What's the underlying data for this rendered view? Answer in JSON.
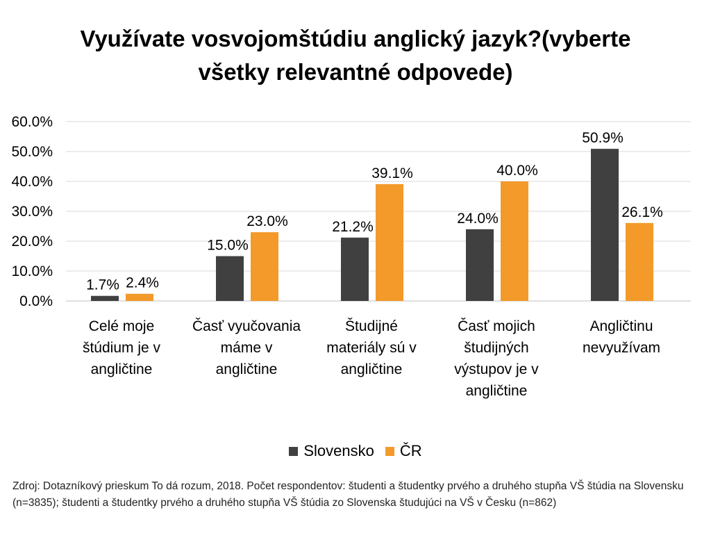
{
  "chart_data": {
    "type": "bar",
    "title_lines": [
      "Využívate vosvojomštúdiu anglický jazyk?(vyberte",
      "všetky relevantné odpovede)"
    ],
    "categories": [
      [
        "Celé moje",
        "štúdium je v",
        "angličtine"
      ],
      [
        "Časť vyučovania",
        "máme v",
        "angličtine"
      ],
      [
        "Študijné",
        "materiály sú v",
        "angličtine"
      ],
      [
        "Časť mojich",
        "študijných",
        "výstupov je v",
        "angličtine"
      ],
      [
        "Angličtinu",
        "nevyužívam"
      ]
    ],
    "series": [
      {
        "name": "Slovensko",
        "color": "#404040",
        "values": [
          1.7,
          15.0,
          21.2,
          24.0,
          50.9
        ],
        "labels": [
          "1.7%",
          "15.0%",
          "21.2%",
          "24.0%",
          "50.9%"
        ]
      },
      {
        "name": "ČR",
        "color": "#f39a2a",
        "values": [
          2.4,
          23.0,
          39.1,
          40.0,
          26.1
        ],
        "labels": [
          "2.4%",
          "23.0%",
          "39.1%",
          "40.0%",
          "26.1%"
        ]
      }
    ],
    "ylim": [
      0,
      60
    ],
    "y_ticks": [
      "0.0%",
      "10.0%",
      "20.0%",
      "30.0%",
      "40.0%",
      "50.0%",
      "60.0%"
    ],
    "grid": true,
    "legend_position": "bottom"
  },
  "source_text": "Zdroj: Dotazníkový prieskum To dá rozum, 2018. Počet respondentov: študenti a študentky prvého a druhého stupňa VŠ štúdia na Slovensku (n=3835); študenti a študentky prvého a druhého stupňa VŠ štúdia zo Slovenska študujúci na VŠ v Česku (n=862)"
}
